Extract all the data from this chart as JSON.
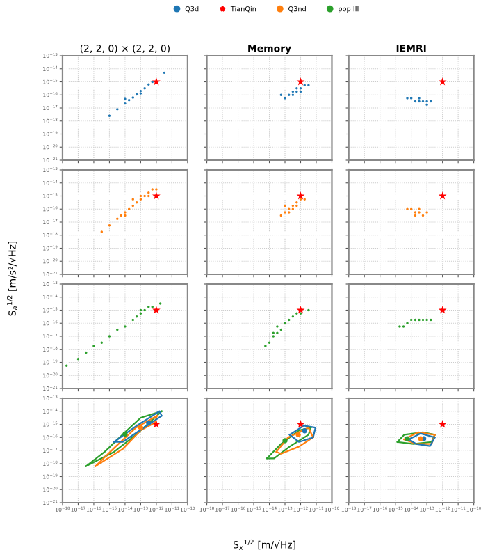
{
  "chart_data": [
    {
      "type": "scatter",
      "title": "(2, 2, 0) × (2, 2, 0)",
      "legend": "top",
      "log": "xy",
      "grid": true,
      "tick_labels": "y",
      "xlim": [
        1e-18,
        1e-10
      ],
      "ylim": [
        1e-21,
        1e-13
      ],
      "xticks": [
        {
          "value": 1e-18,
          "label": "10$^{−18}$"
        },
        {
          "value": 1e-17,
          "label": "10$^{−17}$"
        },
        {
          "value": 1e-16,
          "label": "10$^{−16}$"
        },
        {
          "value": 1e-15,
          "label": "10$^{−15}$"
        },
        {
          "value": 1e-14,
          "label": "10$^{−14}$"
        },
        {
          "value": 1e-13,
          "label": "10$^{−13}$"
        },
        {
          "value": 1e-12,
          "label": "10$^{−12}$"
        },
        {
          "value": 1e-11,
          "label": "10$^{−11}$"
        },
        {
          "value": 1e-10,
          "label": "10$^{−10}$"
        }
      ],
      "yticks": [
        {
          "value": 1e-21,
          "label": "10$^{−21}$"
        },
        {
          "value": 1e-20,
          "label": "10$^{−20}$"
        },
        {
          "value": 1e-19,
          "label": "10$^{−19}$"
        },
        {
          "value": 1e-18,
          "label": "10$^{−18}$"
        },
        {
          "value": 1e-17,
          "label": "10$^{−17}$"
        },
        {
          "value": 1e-16,
          "label": "10$^{−16}$"
        },
        {
          "value": 1e-15,
          "label": "10$^{−15}$"
        },
        {
          "value": 1e-14,
          "label": "10$^{−14}$"
        },
        {
          "value": 1e-13,
          "label": "10$^{−13}$"
        }
      ],
      "series": [
        {
          "name": "Q3d",
          "color": "#1f77b4",
          "marker": "circle",
          "x": [
            1e-15,
            3.2e-15,
            1e-14,
            1.8e-14,
            3.2e-14,
            5.6e-14,
            1e-13,
            1.8e-13,
            3.2e-13,
            5.6e-13,
            1e-12,
            3.2e-12,
            1e-14,
            1e-13
          ],
          "values": [
            2.5e-18,
            7.9e-18,
            2.2e-17,
            4e-17,
            6.3e-17,
            1.1e-16,
            2e-16,
            3.2e-16,
            6.3e-16,
            1e-15,
            null,
            5e-15,
            5e-17,
            1.3e-16
          ]
        },
        {
          "name": "TianQin",
          "color": "#ff0000",
          "marker": "star",
          "x": [
            1e-12
          ],
          "values": [
            1e-15
          ]
        }
      ]
    },
    {
      "type": "scatter",
      "title": "Memory",
      "log": "xy",
      "grid": true,
      "tick_labels": false,
      "xlim": [
        1e-18,
        1e-10
      ],
      "ylim": [
        1e-21,
        1e-13
      ],
      "xticks": [
        {
          "value": 1e-18,
          "label": null
        },
        {
          "value": 1e-17,
          "label": null
        },
        {
          "value": 1e-16,
          "label": null
        },
        {
          "value": 1e-15,
          "label": null
        },
        {
          "value": 1e-14,
          "label": null
        },
        {
          "value": 1e-13,
          "label": null
        },
        {
          "value": 1e-12,
          "label": null
        },
        {
          "value": 1e-11,
          "label": null
        },
        {
          "value": 1e-10,
          "label": null
        }
      ],
      "yticks": [
        {
          "value": 1e-21,
          "label": null
        },
        {
          "value": 1e-20,
          "label": null
        },
        {
          "value": 1e-19,
          "label": null
        },
        {
          "value": 1e-18,
          "label": null
        },
        {
          "value": 1e-17,
          "label": null
        },
        {
          "value": 1e-16,
          "label": null
        },
        {
          "value": 1e-15,
          "label": null
        },
        {
          "value": 1e-14,
          "label": null
        },
        {
          "value": 1e-13,
          "label": null
        }
      ],
      "series": [
        {
          "name": "Q3d",
          "color": "#1f77b4",
          "marker": "circle",
          "x": [
            1e-13,
            1.8e-13,
            3.2e-13,
            5.6e-13,
            1e-12,
            1.8e-12,
            3.2e-13,
            5.6e-13,
            1e-12,
            5.6e-14,
            3.2e-12
          ],
          "values": [
            5.6e-17,
            1e-16,
            1.8e-16,
            3.2e-16,
            3.2e-16,
            5.6e-16,
            1e-16,
            1.8e-16,
            1.8e-16,
            1e-16,
            5.6e-16
          ]
        },
        {
          "name": "TianQin",
          "color": "#ff0000",
          "marker": "star",
          "x": [
            1e-12
          ],
          "values": [
            1e-15
          ]
        }
      ]
    },
    {
      "type": "scatter",
      "title": "IEMRI",
      "log": "xy",
      "grid": true,
      "tick_labels": false,
      "xlim": [
        1e-18,
        1e-10
      ],
      "ylim": [
        1e-21,
        1e-13
      ],
      "xticks": [
        {
          "value": 1e-18,
          "label": null
        },
        {
          "value": 1e-17,
          "label": null
        },
        {
          "value": 1e-16,
          "label": null
        },
        {
          "value": 1e-15,
          "label": null
        },
        {
          "value": 1e-14,
          "label": null
        },
        {
          "value": 1e-13,
          "label": null
        },
        {
          "value": 1e-12,
          "label": null
        },
        {
          "value": 1e-11,
          "label": null
        },
        {
          "value": 1e-10,
          "label": null
        }
      ],
      "yticks": [
        {
          "value": 1e-21,
          "label": null
        },
        {
          "value": 1e-20,
          "label": null
        },
        {
          "value": 1e-19,
          "label": null
        },
        {
          "value": 1e-18,
          "label": null
        },
        {
          "value": 1e-17,
          "label": null
        },
        {
          "value": 1e-16,
          "label": null
        },
        {
          "value": 1e-15,
          "label": null
        },
        {
          "value": 1e-14,
          "label": null
        },
        {
          "value": 1e-13,
          "label": null
        }
      ],
      "series": [
        {
          "name": "Q3d",
          "color": "#1f77b4",
          "marker": "circle",
          "x": [
            5.6e-15,
            1e-14,
            1.8e-14,
            3.2e-14,
            5.6e-14,
            1e-13,
            1e-13,
            1.8e-13,
            3.2e-14
          ],
          "values": [
            5.6e-17,
            5.6e-17,
            3.2e-17,
            5.6e-17,
            3.2e-17,
            3.2e-17,
            1.8e-17,
            3.2e-17,
            3.2e-17
          ]
        },
        {
          "name": "TianQin",
          "color": "#ff0000",
          "marker": "star",
          "x": [
            1e-12
          ],
          "values": [
            1e-15
          ]
        }
      ]
    },
    {
      "type": "scatter",
      "ylabel": "S$_{a}$$^{1/2}$ [m/s²/√Hz]",
      "log": "xy",
      "grid": true,
      "tick_labels": "y",
      "xlim": [
        1e-18,
        1e-10
      ],
      "ylim": [
        1e-21,
        1e-13
      ],
      "xticks": [
        {
          "value": 1e-18,
          "label": null
        },
        {
          "value": 1e-17,
          "label": null
        },
        {
          "value": 1e-16,
          "label": null
        },
        {
          "value": 1e-15,
          "label": null
        },
        {
          "value": 1e-14,
          "label": null
        },
        {
          "value": 1e-13,
          "label": null
        },
        {
          "value": 1e-12,
          "label": null
        },
        {
          "value": 1e-11,
          "label": null
        },
        {
          "value": 1e-10,
          "label": null
        }
      ],
      "yticks": [
        {
          "value": 1e-21,
          "label": "10$^{−21}$"
        },
        {
          "value": 1e-20,
          "label": "10$^{−20}$"
        },
        {
          "value": 1e-19,
          "label": "10$^{−19}$"
        },
        {
          "value": 1e-18,
          "label": "10$^{−18}$"
        },
        {
          "value": 1e-17,
          "label": "10$^{−17}$"
        },
        {
          "value": 1e-16,
          "label": "10$^{−16}$"
        },
        {
          "value": 1e-15,
          "label": "10$^{−15}$"
        },
        {
          "value": 1e-14,
          "label": "10$^{−14}$"
        },
        {
          "value": 1e-13,
          "label": "10$^{−13}$"
        }
      ],
      "series": [
        {
          "name": "Q3nd",
          "color": "#ff7f0e",
          "marker": "circle",
          "x": [
            3.2e-16,
            1e-15,
            3.2e-15,
            5.6e-15,
            1e-14,
            1.8e-14,
            3.2e-14,
            5.6e-14,
            1e-13,
            1.8e-13,
            3.2e-13,
            5.6e-13,
            3.2e-14,
            1e-13,
            1e-14,
            3.2e-13,
            1e-12
          ],
          "values": [
            1.8e-18,
            5.6e-18,
            1.8e-17,
            3.2e-17,
            5.6e-17,
            1e-16,
            1.8e-16,
            3.2e-16,
            5.6e-16,
            1e-15,
            1.8e-15,
            3.2e-15,
            5.6e-16,
            1e-15,
            3.2e-17,
            1e-15,
            3.2e-15
          ]
        },
        {
          "name": "TianQin",
          "color": "#ff0000",
          "marker": "star",
          "x": [
            1e-12
          ],
          "values": [
            1e-15
          ]
        }
      ]
    },
    {
      "type": "scatter",
      "log": "xy",
      "grid": true,
      "tick_labels": false,
      "xlim": [
        1e-18,
        1e-10
      ],
      "ylim": [
        1e-21,
        1e-13
      ],
      "xticks": [
        {
          "value": 1e-18,
          "label": null
        },
        {
          "value": 1e-17,
          "label": null
        },
        {
          "value": 1e-16,
          "label": null
        },
        {
          "value": 1e-15,
          "label": null
        },
        {
          "value": 1e-14,
          "label": null
        },
        {
          "value": 1e-13,
          "label": null
        },
        {
          "value": 1e-12,
          "label": null
        },
        {
          "value": 1e-11,
          "label": null
        },
        {
          "value": 1e-10,
          "label": null
        }
      ],
      "yticks": [
        {
          "value": 1e-21,
          "label": null
        },
        {
          "value": 1e-20,
          "label": null
        },
        {
          "value": 1e-19,
          "label": null
        },
        {
          "value": 1e-18,
          "label": null
        },
        {
          "value": 1e-17,
          "label": null
        },
        {
          "value": 1e-16,
          "label": null
        },
        {
          "value": 1e-15,
          "label": null
        },
        {
          "value": 1e-14,
          "label": null
        },
        {
          "value": 1e-13,
          "label": null
        }
      ],
      "series": [
        {
          "name": "Q3nd",
          "color": "#ff7f0e",
          "marker": "circle",
          "x": [
            5.6e-14,
            1e-13,
            1.8e-13,
            3.2e-13,
            5.6e-13,
            1e-12,
            1.8e-12,
            1.8e-13,
            3.2e-13,
            1e-13,
            5.6e-13
          ],
          "values": [
            3.2e-17,
            5.6e-17,
            1e-16,
            1.8e-16,
            3.2e-16,
            5.6e-16,
            5.6e-16,
            5.6e-17,
            1e-16,
            1.8e-16,
            1.8e-16
          ]
        },
        {
          "name": "TianQin",
          "color": "#ff0000",
          "marker": "star",
          "x": [
            1e-12
          ],
          "values": [
            1e-15
          ]
        }
      ]
    },
    {
      "type": "scatter",
      "log": "xy",
      "grid": true,
      "tick_labels": false,
      "xlim": [
        1e-18,
        1e-10
      ],
      "ylim": [
        1e-21,
        1e-13
      ],
      "xticks": [
        {
          "value": 1e-18,
          "label": null
        },
        {
          "value": 1e-17,
          "label": null
        },
        {
          "value": 1e-16,
          "label": null
        },
        {
          "value": 1e-15,
          "label": null
        },
        {
          "value": 1e-14,
          "label": null
        },
        {
          "value": 1e-13,
          "label": null
        },
        {
          "value": 1e-12,
          "label": null
        },
        {
          "value": 1e-11,
          "label": null
        },
        {
          "value": 1e-10,
          "label": null
        }
      ],
      "yticks": [
        {
          "value": 1e-21,
          "label": null
        },
        {
          "value": 1e-20,
          "label": null
        },
        {
          "value": 1e-19,
          "label": null
        },
        {
          "value": 1e-18,
          "label": null
        },
        {
          "value": 1e-17,
          "label": null
        },
        {
          "value": 1e-16,
          "label": null
        },
        {
          "value": 1e-15,
          "label": null
        },
        {
          "value": 1e-14,
          "label": null
        },
        {
          "value": 1e-13,
          "label": null
        }
      ],
      "series": [
        {
          "name": "Q3nd",
          "color": "#ff7f0e",
          "marker": "circle",
          "x": [
            5.6e-15,
            1e-14,
            1.8e-14,
            3.2e-14,
            5.6e-14,
            1e-13,
            3.2e-14,
            1.8e-14
          ],
          "values": [
            1e-16,
            1e-16,
            5.6e-17,
            5.6e-17,
            3.2e-17,
            5.6e-17,
            1e-16,
            3.2e-17
          ]
        },
        {
          "name": "TianQin",
          "color": "#ff0000",
          "marker": "star",
          "x": [
            1e-12
          ],
          "values": [
            1e-15
          ]
        }
      ]
    },
    {
      "type": "scatter",
      "log": "xy",
      "grid": true,
      "tick_labels": "y",
      "xlim": [
        1e-18,
        1e-10
      ],
      "ylim": [
        1e-21,
        1e-13
      ],
      "xticks": [
        {
          "value": 1e-18,
          "label": null
        },
        {
          "value": 1e-17,
          "label": null
        },
        {
          "value": 1e-16,
          "label": null
        },
        {
          "value": 1e-15,
          "label": null
        },
        {
          "value": 1e-14,
          "label": null
        },
        {
          "value": 1e-13,
          "label": null
        },
        {
          "value": 1e-12,
          "label": null
        },
        {
          "value": 1e-11,
          "label": null
        },
        {
          "value": 1e-10,
          "label": null
        }
      ],
      "yticks": [
        {
          "value": 1e-21,
          "label": "10$^{−21}$"
        },
        {
          "value": 1e-20,
          "label": "10$^{−20}$"
        },
        {
          "value": 1e-19,
          "label": "10$^{−19}$"
        },
        {
          "value": 1e-18,
          "label": "10$^{−18}$"
        },
        {
          "value": 1e-17,
          "label": "10$^{−17}$"
        },
        {
          "value": 1e-16,
          "label": "10$^{−16}$"
        },
        {
          "value": 1e-15,
          "label": "10$^{−15}$"
        },
        {
          "value": 1e-14,
          "label": "10$^{−14}$"
        },
        {
          "value": 1e-13,
          "label": "10$^{−13}$"
        }
      ],
      "series": [
        {
          "name": "pop III",
          "color": "#2ca02c",
          "marker": "circle",
          "x": [
            1.8e-18,
            1e-17,
            3.2e-17,
            1e-16,
            3.2e-16,
            1e-15,
            3.2e-15,
            1e-14,
            3.2e-14,
            5.6e-14,
            1e-13,
            1.8e-13,
            3.2e-13,
            5.6e-13,
            1e-13,
            1.8e-12
          ],
          "values": [
            5.6e-20,
            1.8e-19,
            5.6e-19,
            1.8e-18,
            3.2e-18,
            1e-17,
            3.2e-17,
            5.6e-17,
            1.8e-16,
            3.2e-16,
            5.6e-16,
            1e-15,
            1.8e-15,
            1.8e-15,
            1e-15,
            3.2e-15
          ]
        },
        {
          "name": "TianQin",
          "color": "#ff0000",
          "marker": "star",
          "x": [
            1e-12
          ],
          "values": [
            1e-15
          ]
        }
      ]
    },
    {
      "type": "scatter",
      "log": "xy",
      "grid": true,
      "tick_labels": false,
      "xlim": [
        1e-18,
        1e-10
      ],
      "ylim": [
        1e-21,
        1e-13
      ],
      "xticks": [
        {
          "value": 1e-18,
          "label": null
        },
        {
          "value": 1e-17,
          "label": null
        },
        {
          "value": 1e-16,
          "label": null
        },
        {
          "value": 1e-15,
          "label": null
        },
        {
          "value": 1e-14,
          "label": null
        },
        {
          "value": 1e-13,
          "label": null
        },
        {
          "value": 1e-12,
          "label": null
        },
        {
          "value": 1e-11,
          "label": null
        },
        {
          "value": 1e-10,
          "label": null
        }
      ],
      "yticks": [
        {
          "value": 1e-21,
          "label": null
        },
        {
          "value": 1e-20,
          "label": null
        },
        {
          "value": 1e-19,
          "label": null
        },
        {
          "value": 1e-18,
          "label": null
        },
        {
          "value": 1e-17,
          "label": null
        },
        {
          "value": 1e-16,
          "label": null
        },
        {
          "value": 1e-15,
          "label": null
        },
        {
          "value": 1e-14,
          "label": null
        },
        {
          "value": 1e-13,
          "label": null
        }
      ],
      "series": [
        {
          "name": "pop III",
          "color": "#2ca02c",
          "marker": "circle",
          "x": [
            5.6e-15,
            1e-14,
            1.8e-14,
            3.2e-14,
            5.6e-14,
            1e-13,
            1.8e-13,
            3.2e-13,
            5.6e-13,
            1e-12,
            3.2e-12,
            3.2e-14,
            1.8e-14
          ],
          "values": [
            1.8e-18,
            3.2e-18,
            1e-17,
            1.8e-17,
            3.2e-17,
            1e-16,
            1.8e-16,
            3.2e-16,
            5.6e-16,
            5.6e-16,
            1e-15,
            5.6e-17,
            1.8e-17
          ]
        },
        {
          "name": "TianQin",
          "color": "#ff0000",
          "marker": "star",
          "x": [
            1e-12
          ],
          "values": [
            1e-15
          ]
        }
      ]
    },
    {
      "type": "scatter",
      "log": "xy",
      "grid": true,
      "tick_labels": false,
      "xlim": [
        1e-18,
        1e-10
      ],
      "ylim": [
        1e-21,
        1e-13
      ],
      "xticks": [
        {
          "value": 1e-18,
          "label": null
        },
        {
          "value": 1e-17,
          "label": null
        },
        {
          "value": 1e-16,
          "label": null
        },
        {
          "value": 1e-15,
          "label": null
        },
        {
          "value": 1e-14,
          "label": null
        },
        {
          "value": 1e-13,
          "label": null
        },
        {
          "value": 1e-12,
          "label": null
        },
        {
          "value": 1e-11,
          "label": null
        },
        {
          "value": 1e-10,
          "label": null
        }
      ],
      "yticks": [
        {
          "value": 1e-21,
          "label": null
        },
        {
          "value": 1e-20,
          "label": null
        },
        {
          "value": 1e-19,
          "label": null
        },
        {
          "value": 1e-18,
          "label": null
        },
        {
          "value": 1e-17,
          "label": null
        },
        {
          "value": 1e-16,
          "label": null
        },
        {
          "value": 1e-15,
          "label": null
        },
        {
          "value": 1e-14,
          "label": null
        },
        {
          "value": 1e-13,
          "label": null
        }
      ],
      "series": [
        {
          "name": "pop III",
          "color": "#2ca02c",
          "marker": "circle",
          "x": [
            1.8e-15,
            3.2e-15,
            5.6e-15,
            1e-14,
            1.8e-14,
            3.2e-14,
            5.6e-14,
            1e-13,
            1.8e-13
          ],
          "values": [
            5.6e-17,
            5.6e-17,
            1e-16,
            1.8e-16,
            1.8e-16,
            1.8e-16,
            1.8e-16,
            1.8e-16,
            1.8e-16
          ]
        },
        {
          "name": "TianQin",
          "color": "#ff0000",
          "marker": "star",
          "x": [
            1e-12
          ],
          "values": [
            1e-15
          ]
        }
      ]
    },
    {
      "type": "scatter",
      "log": "xy",
      "grid": true,
      "xlim": [
        1e-18,
        1e-10
      ],
      "ylim": [
        1e-21,
        1e-13
      ],
      "xticks": [
        {
          "value": 1e-18,
          "label": "10$^{−18}$"
        },
        {
          "value": 1e-17,
          "label": "10$^{−17}$"
        },
        {
          "value": 1e-16,
          "label": "10$^{−16}$"
        },
        {
          "value": 1e-15,
          "label": "10$^{−15}$"
        },
        {
          "value": 1e-14,
          "label": "10$^{−14}$"
        },
        {
          "value": 1e-13,
          "label": "10$^{−13}$"
        },
        {
          "value": 1e-12,
          "label": "10$^{−12}$"
        },
        {
          "value": 1e-11,
          "label": "10$^{−11}$"
        },
        {
          "value": 1e-10,
          "label": "10$^{−10}$"
        }
      ],
      "yticks": [
        {
          "value": 1e-21,
          "label": "10$^{−21}$"
        },
        {
          "value": 1e-20,
          "label": "10$^{−20}$"
        },
        {
          "value": 1e-19,
          "label": "10$^{−19}$"
        },
        {
          "value": 1e-18,
          "label": "10$^{−18}$"
        },
        {
          "value": 1e-17,
          "label": "10$^{−17}$"
        },
        {
          "value": 1e-16,
          "label": "10$^{−16}$"
        },
        {
          "value": 1e-15,
          "label": "10$^{−15}$"
        },
        {
          "value": 1e-14,
          "label": "10$^{−14}$"
        },
        {
          "value": 1e-13,
          "label": "10$^{−13}$"
        }
      ],
      "series": [
        {
          "type": "line",
          "color": "#2ca02c",
          "x": [
            3.2e-17,
            5e-16,
            1e-14,
            1e-13,
            2.2e-12
          ],
          "values": [
            6.3e-19,
            7.9e-18,
            2.5e-16,
            3.2e-15,
            1e-14
          ]
        },
        {
          "type": "line",
          "color": "#2ca02c",
          "x": [
            3.2e-17,
            2e-15,
            5e-14,
            7.9e-13,
            2.2e-12
          ],
          "values": [
            6.3e-19,
            7.9e-18,
            1.6e-16,
            3.2e-15,
            1e-14
          ]
        },
        {
          "type": "line",
          "color": "#ff7f0e",
          "x": [
            1.3e-16,
            2.5e-15,
            5e-14,
            1.1e-12
          ],
          "values": [
            6.3e-19,
            2e-17,
            5.6e-16,
            4.5e-15
          ]
        },
        {
          "type": "line",
          "color": "#ff7f0e",
          "x": [
            1.3e-16,
            7.1e-15,
            1e-13,
            7.9e-13,
            1.1e-12
          ],
          "values": [
            6.3e-19,
            1.3e-17,
            3.5e-16,
            1.3e-15,
            4.5e-15
          ]
        },
        {
          "type": "line",
          "color": "#1f77b4",
          "x": [
            2e-15,
            5.6e-14,
            1.6e-12,
            2.2e-12
          ],
          "values": [
            4.5e-17,
            7.9e-16,
            1e-14,
            4.5e-15
          ]
        },
        {
          "type": "line",
          "color": "#1f77b4",
          "x": [
            2e-15,
            7.1e-15,
            1.6e-13,
            2.2e-12
          ],
          "values": [
            4.5e-17,
            4.5e-17,
            5.6e-16,
            4.5e-15
          ]
        },
        {
          "name": "Q3d",
          "color": "#1f77b4",
          "marker": "circle",
          "x": [
            3.2e-13
          ],
          "values": [
            1.3e-15
          ]
        },
        {
          "name": "Q3nd",
          "color": "#ff7f0e",
          "marker": "circle",
          "x": [
            1e-13
          ],
          "values": [
            5.6e-16
          ]
        },
        {
          "name": "pop III",
          "color": "#2ca02c",
          "marker": "circle",
          "x": [
            1e-14
          ],
          "values": [
            1.8e-16
          ]
        },
        {
          "name": "TianQin",
          "color": "#ff0000",
          "marker": "star",
          "x": [
            1e-12
          ],
          "values": [
            1e-15
          ]
        }
      ]
    },
    {
      "type": "scatter",
      "xlabel": "S$_{x}$$^{1/2}$ [m/√Hz]",
      "log": "xy",
      "grid": true,
      "tick_labels": "x",
      "xlim": [
        1e-18,
        1e-10
      ],
      "ylim": [
        1e-21,
        1e-13
      ],
      "xticks": [
        {
          "value": 1e-18,
          "label": "10$^{−18}$"
        },
        {
          "value": 1e-17,
          "label": "10$^{−17}$"
        },
        {
          "value": 1e-16,
          "label": "10$^{−16}$"
        },
        {
          "value": 1e-15,
          "label": "10$^{−15}$"
        },
        {
          "value": 1e-14,
          "label": "10$^{−14}$"
        },
        {
          "value": 1e-13,
          "label": "10$^{−13}$"
        },
        {
          "value": 1e-12,
          "label": "10$^{−12}$"
        },
        {
          "value": 1e-11,
          "label": "10$^{−11}$"
        },
        {
          "value": 1e-10,
          "label": "10$^{−10}$"
        }
      ],
      "yticks": [
        {
          "value": 1e-21,
          "label": null
        },
        {
          "value": 1e-20,
          "label": null
        },
        {
          "value": 1e-19,
          "label": null
        },
        {
          "value": 1e-18,
          "label": null
        },
        {
          "value": 1e-17,
          "label": null
        },
        {
          "value": 1e-16,
          "label": null
        },
        {
          "value": 1e-15,
          "label": null
        },
        {
          "value": 1e-14,
          "label": null
        },
        {
          "value": 1e-13,
          "label": null
        }
      ],
      "series": [
        {
          "type": "line",
          "color": "#2ca02c",
          "x": [
            7.1e-15,
            5.6e-14,
            7.9e-13,
            4.5e-12
          ],
          "values": [
            2.5e-18,
            3.2e-17,
            3.5e-16,
            5.6e-16
          ]
        },
        {
          "type": "line",
          "color": "#2ca02c",
          "x": [
            7.1e-15,
            2e-14,
            2e-13,
            3.2e-12,
            4.5e-12
          ],
          "values": [
            2.5e-18,
            2.5e-18,
            2e-17,
            1.6e-16,
            5.6e-16
          ]
        },
        {
          "type": "line",
          "color": "#ff7f0e",
          "x": [
            2.8e-14,
            1.6e-13,
            3.2e-12,
            6.3e-12
          ],
          "values": [
            7.9e-18,
            1e-16,
            5.6e-16,
            1e-16
          ]
        },
        {
          "type": "line",
          "color": "#ff7f0e",
          "x": [
            2.8e-14,
            5.6e-14,
            7.9e-13,
            6.3e-12
          ],
          "values": [
            7.9e-18,
            5.6e-18,
            2e-17,
            1e-16
          ]
        },
        {
          "type": "line",
          "color": "#1f77b4",
          "x": [
            2e-13,
            1.6e-12,
            8.9e-12
          ],
          "values": [
            1.6e-16,
            7.9e-16,
            5.6e-16
          ]
        },
        {
          "type": "line",
          "color": "#1f77b4",
          "x": [
            2e-13,
            7.9e-13,
            6.3e-12,
            8.9e-12
          ],
          "values": [
            1.6e-16,
            4.5e-17,
            1e-16,
            5.6e-16
          ]
        },
        {
          "name": "Q3d",
          "color": "#1f77b4",
          "marker": "circle",
          "x": [
            1.8e-12
          ],
          "values": [
            3.2e-16
          ]
        },
        {
          "name": "Q3nd",
          "color": "#ff7f0e",
          "marker": "circle",
          "x": [
            7.1e-13
          ],
          "values": [
            1.6e-16
          ]
        },
        {
          "name": "pop III",
          "color": "#2ca02c",
          "marker": "circle",
          "x": [
            1e-13
          ],
          "values": [
            5.6e-17
          ]
        },
        {
          "name": "TianQin",
          "color": "#ff0000",
          "marker": "star",
          "x": [
            1e-12
          ],
          "values": [
            1e-15
          ]
        }
      ]
    },
    {
      "type": "scatter",
      "log": "xy",
      "grid": true,
      "tick_labels": "x",
      "xlim": [
        1e-18,
        1e-10
      ],
      "ylim": [
        1e-21,
        1e-13
      ],
      "xticks": [
        {
          "value": 1e-18,
          "label": "10$^{−18}$"
        },
        {
          "value": 1e-17,
          "label": "10$^{−17}$"
        },
        {
          "value": 1e-16,
          "label": "10$^{−16}$"
        },
        {
          "value": 1e-15,
          "label": "10$^{−15}$"
        },
        {
          "value": 1e-14,
          "label": "10$^{−14}$"
        },
        {
          "value": 1e-13,
          "label": "10$^{−13}$"
        },
        {
          "value": 1e-12,
          "label": "10$^{−12}$"
        },
        {
          "value": 1e-11,
          "label": "10$^{−11}$"
        },
        {
          "value": 1e-10,
          "label": "10$^{−10}$"
        }
      ],
      "yticks": [
        {
          "value": 1e-21,
          "label": null
        },
        {
          "value": 1e-20,
          "label": null
        },
        {
          "value": 1e-19,
          "label": null
        },
        {
          "value": 1e-18,
          "label": null
        },
        {
          "value": 1e-17,
          "label": null
        },
        {
          "value": 1e-16,
          "label": null
        },
        {
          "value": 1e-15,
          "label": null
        },
        {
          "value": 1e-14,
          "label": null
        },
        {
          "value": 1e-13,
          "label": null
        }
      ],
      "series": [
        {
          "type": "line",
          "color": "#2ca02c",
          "x": [
            1.3e-15,
            3.5e-15,
            5.6e-14,
            3.2e-13
          ],
          "values": [
            4.5e-17,
            1.6e-16,
            2.5e-16,
            1.6e-16
          ]
        },
        {
          "type": "line",
          "color": "#2ca02c",
          "x": [
            1.3e-15,
            1.4e-14,
            2e-13,
            3.2e-13
          ],
          "values": [
            4.5e-17,
            3.2e-17,
            4.5e-17,
            1.6e-16
          ]
        },
        {
          "type": "line",
          "color": "#ff7f0e",
          "x": [
            3.5e-15,
            2.8e-14,
            3.2e-13
          ],
          "values": [
            7.1e-17,
            2.5e-16,
            1.6e-16
          ]
        },
        {
          "type": "line",
          "color": "#ff7f0e",
          "x": [
            3.5e-15,
            2e-14,
            2e-13,
            3.2e-13
          ],
          "values": [
            7.1e-17,
            3.2e-17,
            3.2e-17,
            1.6e-16
          ]
        },
        {
          "type": "line",
          "color": "#1f77b4",
          "x": [
            7.1e-15,
            4e-14,
            3.2e-13
          ],
          "values": [
            7.1e-17,
            2e-16,
            1e-16
          ]
        },
        {
          "type": "line",
          "color": "#1f77b4",
          "x": [
            7.1e-15,
            2e-14,
            1.6e-13,
            3.2e-13
          ],
          "values": [
            7.1e-17,
            3.2e-17,
            2.2e-17,
            1e-16
          ]
        },
        {
          "name": "Q3d",
          "color": "#1f77b4",
          "marker": "circle",
          "x": [
            6.3e-14
          ],
          "values": [
            7.9e-17
          ]
        },
        {
          "name": "Q3nd",
          "color": "#ff7f0e",
          "marker": "circle",
          "x": [
            4e-14
          ],
          "values": [
            7.9e-17
          ]
        },
        {
          "name": "pop III",
          "color": "#2ca02c",
          "marker": "circle",
          "x": [
            5.6e-15
          ],
          "values": [
            7.9e-17
          ]
        },
        {
          "name": "TianQin",
          "color": "#ff0000",
          "marker": "star",
          "x": [
            1e-12
          ],
          "values": [
            1e-15
          ]
        }
      ]
    }
  ]
}
